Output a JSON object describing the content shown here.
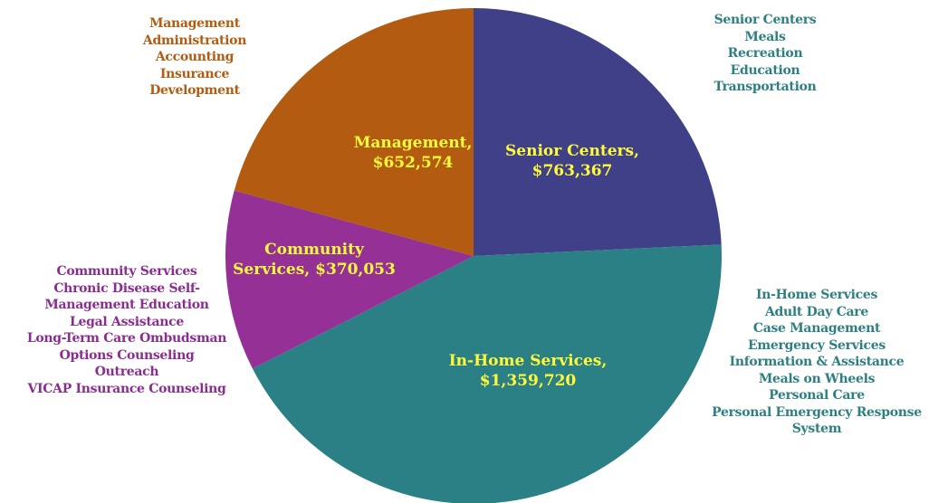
{
  "chart_data": {
    "type": "pie",
    "title": "",
    "slices": [
      {
        "label_line1": "Senior Centers,",
        "label_line2": "$763,367",
        "value": 763367,
        "color": "#3f4088"
      },
      {
        "label_line1": "In-Home Services,",
        "label_line2": "$1,359,720",
        "value": 1359720,
        "color": "#2a8084"
      },
      {
        "label_line1": "Community",
        "label_line2": "Services, $370,053",
        "value": 370053,
        "color": "#943096"
      },
      {
        "label_line1": "Management,",
        "label_line2": "$652,574",
        "value": 652574,
        "color": "#b35b10"
      }
    ],
    "label_color": "#fffb3a"
  },
  "annotations": {
    "management": [
      "Management",
      "Administration",
      "Accounting",
      "Insurance",
      "Development"
    ],
    "senior_centers": [
      "Senior Centers",
      "Meals",
      "Recreation",
      "Education",
      "Transportation"
    ],
    "community_services": [
      "Community Services",
      "Chronic Disease Self-",
      "Management Education",
      "Legal Assistance",
      "Long-Term Care Ombudsman",
      "Options Counseling",
      "Outreach",
      "VICAP Insurance Counseling"
    ],
    "in_home_services": [
      "In-Home Services",
      "Adult Day Care",
      "Case Management",
      "Emergency Services",
      "Information & Assistance",
      "Meals on Wheels",
      "Personal Care",
      "Personal Emergency Response",
      "System"
    ]
  }
}
